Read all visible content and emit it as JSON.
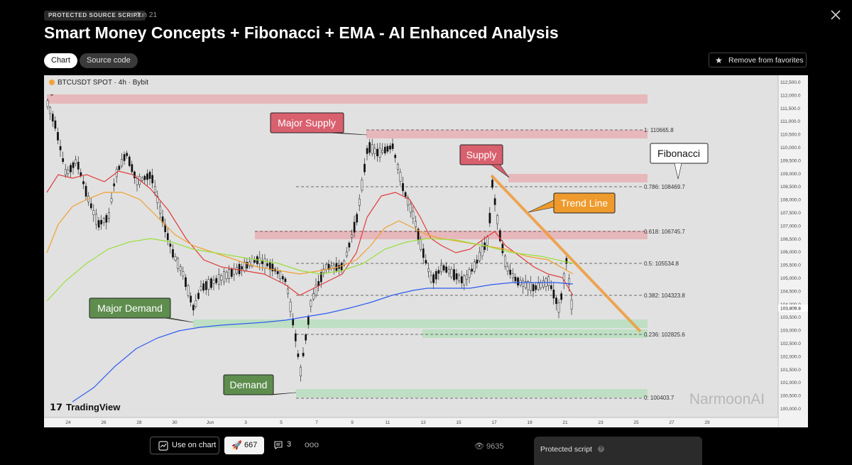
{
  "header": {
    "badge": "PROTECTED SOURCE SCRIPT",
    "date": "Jun 21",
    "title": "Smart Money Concepts + Fibonacci + EMA - AI Enhanced Analysis"
  },
  "tabs": [
    {
      "label": "Chart",
      "active": true
    },
    {
      "label": "Source code",
      "active": false
    }
  ],
  "favorites_label": "Remove from favorites",
  "chart": {
    "symbol": "BTCUSDT SPOT · 4h · Bybit",
    "watermark": "NarmoonAI",
    "brand": "TradingView",
    "last_price": "103,809.8",
    "price_axis": [
      "112,500.0",
      "112,000.0",
      "111,500.0",
      "111,000.0",
      "110,500.0",
      "110,000.0",
      "109,500.0",
      "109,000.0",
      "108,500.0",
      "108,000.0",
      "107,500.0",
      "107,000.0",
      "106,500.0",
      "106,000.0",
      "105,500.0",
      "105,000.0",
      "104,500.0",
      "104,000.0",
      "103,500.0",
      "103,000.0",
      "102,500.0",
      "102,000.0",
      "101,500.0",
      "101,000.0",
      "100,500.0",
      "100,000.0"
    ],
    "time_axis": [
      "24",
      "26",
      "28",
      "30",
      "Jun",
      "3",
      "5",
      "7",
      "9",
      "11",
      "13",
      "15",
      "17",
      "19",
      "21",
      "23",
      "25",
      "27",
      "29"
    ],
    "fib_labels": [
      "1: 110665.8",
      "0.786: 108469.7",
      "0.618: 106745.7",
      "0.5: 105534.8",
      "0.382: 104323.8",
      "0.236: 102825.6",
      "0: 100403.7"
    ],
    "callouts": {
      "major_supply": "Major Supply",
      "supply": "Supply",
      "fibonacci": "Fibonacci",
      "trend_line": "Trend Line",
      "major_demand": "Major Demand",
      "demand": "Demand"
    },
    "colors": {
      "supply_zone": "#e8a9ae",
      "demand_zone": "#b5dfbb",
      "ema_fast": "#e03a3a",
      "ema_mid": "#f0a030",
      "ema_slow": "#9ae03c",
      "ema_long": "#2f5bf0",
      "trend_line": "#f09a3a"
    }
  },
  "footer": {
    "use_on_chart": "Use on chart",
    "boosts": "667",
    "comments": "3",
    "more": "ooo",
    "views": "9635",
    "protected_label": "Protected script"
  }
}
